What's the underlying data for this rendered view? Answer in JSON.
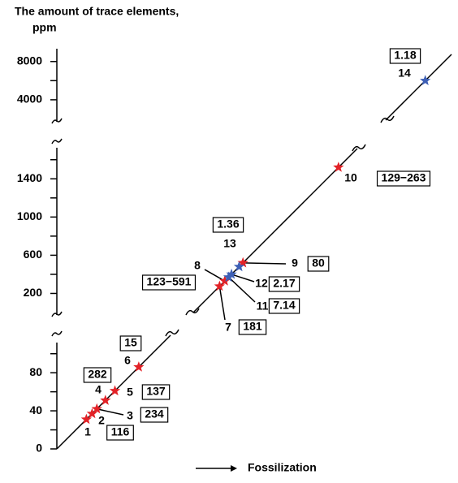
{
  "chart_data": {
    "type": "broken-axis-diagonal",
    "y_label": [
      "The amount of trace elements,",
      "ppm"
    ],
    "x_label": "Fossilization",
    "segments": [
      {
        "ylim": [
          0,
          110
        ],
        "yticks": [
          0,
          40,
          80
        ],
        "minor_yticks": [
          20,
          60,
          100
        ]
      },
      {
        "ylim": [
          0,
          1700
        ],
        "yticks": [
          200,
          600,
          1000,
          1400
        ],
        "minor_yticks": [
          400,
          800,
          1200,
          1600
        ]
      },
      {
        "ylim": [
          1700,
          9000
        ],
        "yticks": [
          4000,
          8000
        ],
        "minor_yticks": [
          6000
        ]
      }
    ],
    "points": [
      {
        "label": "1",
        "value": 31,
        "box": "116",
        "color": "#e32227"
      },
      {
        "label": "2",
        "value": 37,
        "box": null,
        "color": "#e32227"
      },
      {
        "label": "3",
        "value": 42,
        "box": "234",
        "color": "#e32227"
      },
      {
        "label": "4",
        "value": 51,
        "box": "282",
        "color": "#e32227"
      },
      {
        "label": "5",
        "value": 61,
        "box": "137",
        "color": "#e32227"
      },
      {
        "label": "6",
        "value": 86,
        "box": "15",
        "color": "#e32227"
      },
      {
        "label": "7",
        "value": 275,
        "box": "181",
        "color": "#e32227"
      },
      {
        "label": "8",
        "value": 330,
        "box": "123−591",
        "color": "#e32227"
      },
      {
        "label": "9",
        "value": 520,
        "box": "80",
        "color": "#e32227"
      },
      {
        "label": "10",
        "value": 1520,
        "box": "129−263",
        "color": "#e32227"
      },
      {
        "label": "11",
        "value": 370,
        "box": "7.14",
        "color": "#3d5fb5"
      },
      {
        "label": "12",
        "value": 400,
        "box": "2.17",
        "color": "#3d5fb5"
      },
      {
        "label": "13",
        "value": 480,
        "box": "1.36",
        "color": "#3d5fb5"
      },
      {
        "label": "14",
        "value": 6000,
        "box": "1.18",
        "color": "#3d5fb5"
      }
    ]
  }
}
